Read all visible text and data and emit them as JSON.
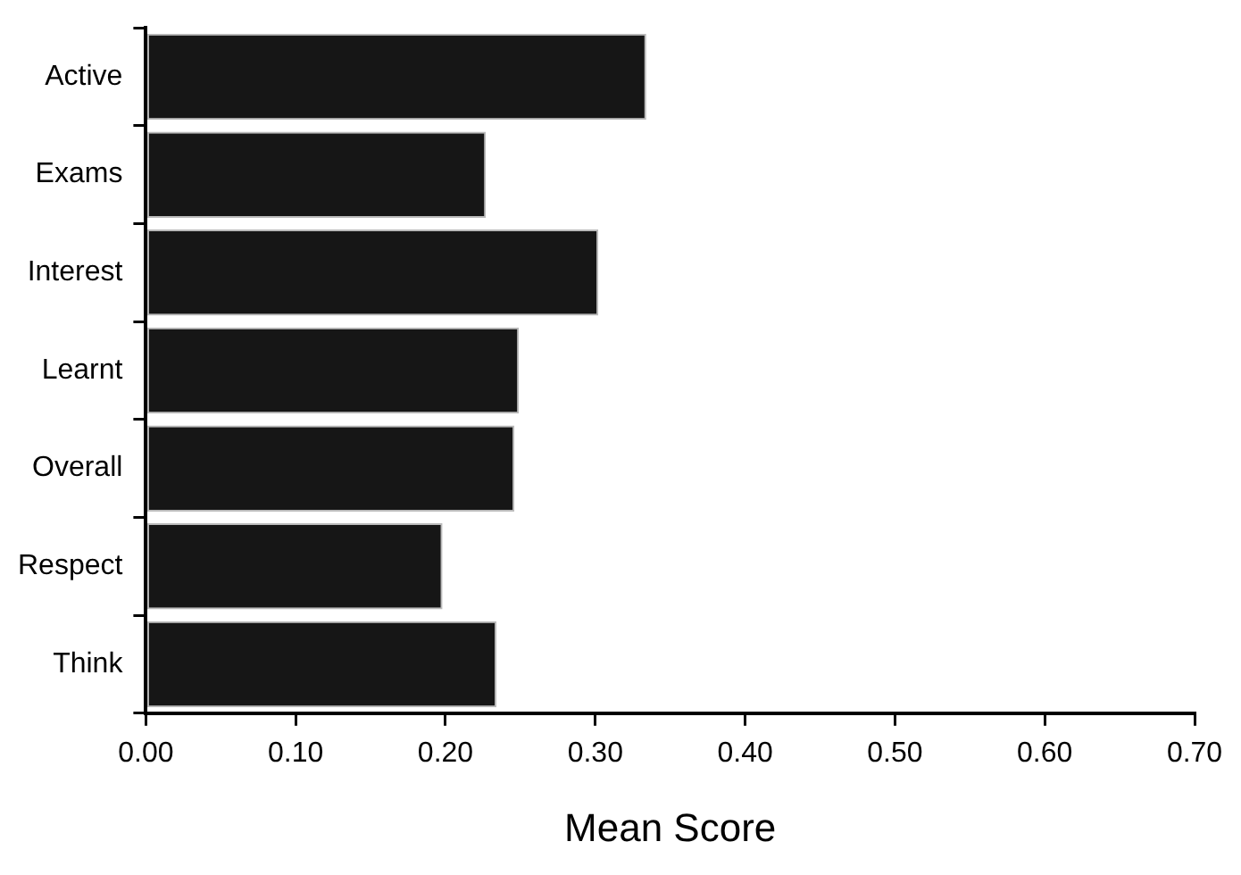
{
  "chart_data": {
    "type": "bar",
    "orientation": "horizontal",
    "xlabel": "Mean Score",
    "categories": [
      "Active",
      "Exams",
      "Interest",
      "Learnt",
      "Overall",
      "Respect",
      "Think"
    ],
    "values": [
      0.334,
      0.227,
      0.302,
      0.249,
      0.246,
      0.198,
      0.234
    ],
    "color": "#161616",
    "xlim": [
      0,
      0.7
    ],
    "xticks": [
      {
        "value": 0,
        "label": "0.00"
      },
      {
        "value": 0.1,
        "label": "0.10"
      },
      {
        "value": 0.2,
        "label": "0.20"
      },
      {
        "value": 0.3,
        "label": "0.30"
      },
      {
        "value": 0.4,
        "label": "0.40"
      },
      {
        "value": 0.5,
        "label": "0.50"
      },
      {
        "value": 0.6,
        "label": "0.60"
      },
      {
        "value": 0.7,
        "label": "0.70"
      }
    ],
    "grid": false,
    "legend": false
  }
}
